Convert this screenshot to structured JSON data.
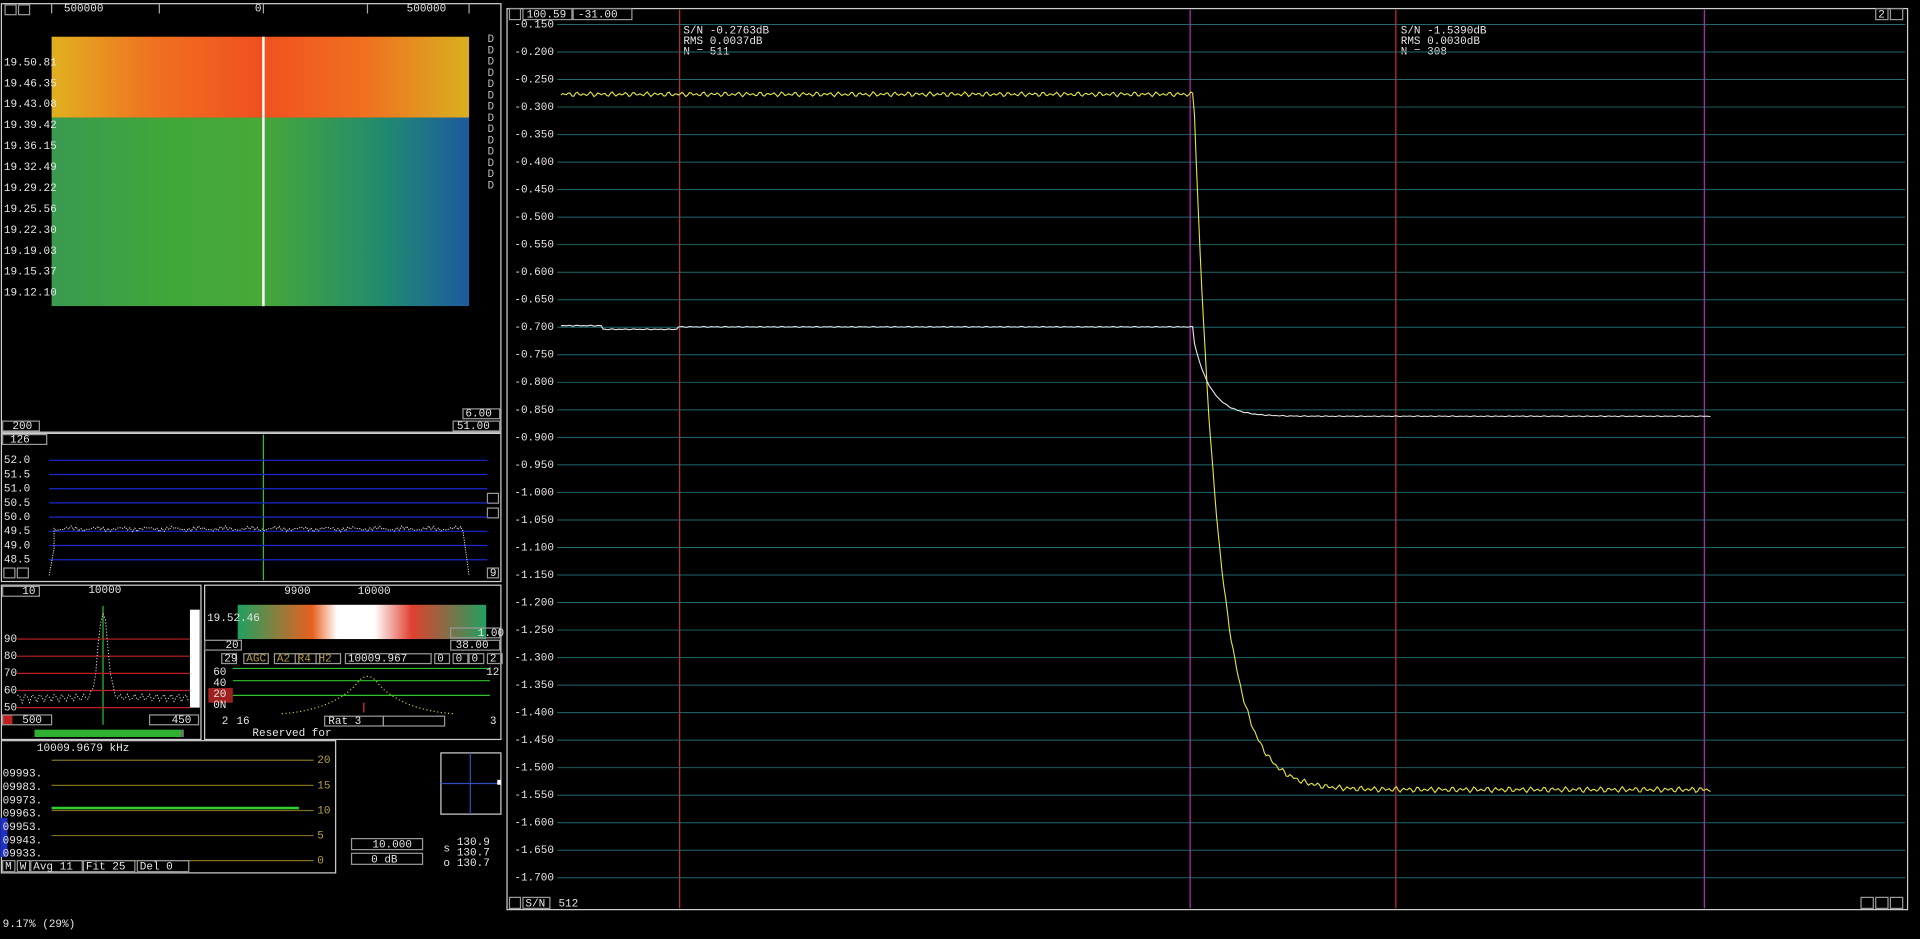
{
  "waterfall": {
    "freq_labels": [
      "500000",
      "0",
      "500000"
    ],
    "times": [
      "19.50.81",
      "19.46.35",
      "19.43.08",
      "19.39.42",
      "19.36.15",
      "19.32.49",
      "19.29.22",
      "19.25.56",
      "19.22.30",
      "19.19.03",
      "19.15.37",
      "19.12.10"
    ],
    "side_mark": "D",
    "left_box": "200",
    "right_top": "6.00",
    "right_bottom": "51.00"
  },
  "spectrum": {
    "badge": "126",
    "y_labels": [
      "52.0",
      "51.5",
      "51.0",
      "50.5",
      "50.0",
      "49.5",
      "49.0",
      "48.5"
    ],
    "corner": "9"
  },
  "baseband": {
    "left_box": "10",
    "center": "10000",
    "y_labels": [
      "90",
      "80",
      "70",
      "60",
      "50"
    ],
    "bottom_left": "500",
    "bottom_right": "450"
  },
  "hires": {
    "freq_labels": [
      "9900",
      "10000"
    ],
    "time": "19.52.46",
    "left_box": "20",
    "right_top": "1.00",
    "right_bottom": "38.00",
    "row": [
      "29",
      "AGC",
      "A2",
      "R4",
      "H2",
      "10009.967",
      "0",
      "0",
      "0",
      "2"
    ],
    "levels": [
      "60",
      "40",
      "20",
      "0N"
    ],
    "corner": "12",
    "bottom": [
      "2",
      "16",
      "Rat 3",
      "3"
    ],
    "note": "Reserved for"
  },
  "freq": {
    "title": "10009.9679 kHz",
    "list": [
      "09993.",
      "09983.",
      "09973.",
      "09963.",
      "09953.",
      "09943.",
      "09933."
    ],
    "scale": [
      "20",
      "15",
      "10",
      "5",
      "0"
    ],
    "bottom": [
      "M",
      "W",
      "Avg 11",
      "Fit 25",
      "Del 0"
    ],
    "step": "10.000",
    "gain": "0 dB",
    "readings": [
      "130.9",
      "130.7",
      "130.7"
    ],
    "s": "s",
    "o": "o"
  },
  "main": {
    "header": [
      "100.59",
      "-31.00"
    ],
    "corner": "2",
    "stats": [
      [
        "S/N -0.2763dB",
        "RMS 0.0037dB",
        "N = 511"
      ],
      [
        "S/N -1.5390dB",
        "RMS 0.0030dB",
        "N = 308"
      ]
    ],
    "y_labels": [
      "-0.150",
      "-0.200",
      "-0.250",
      "-0.300",
      "-0.350",
      "-0.400",
      "-0.450",
      "-0.500",
      "-0.550",
      "-0.600",
      "-0.650",
      "-0.700",
      "-0.750",
      "-0.800",
      "-0.850",
      "-0.900",
      "-0.950",
      "-1.000",
      "-1.050",
      "-1.100",
      "-1.150",
      "-1.200",
      "-1.250",
      "-1.300",
      "-1.350",
      "-1.400",
      "-1.450",
      "-1.500",
      "-1.550",
      "-1.600",
      "-1.650",
      "-1.700"
    ],
    "footer": [
      "S/N",
      "512"
    ]
  },
  "status": "9.17%  (29%)"
}
